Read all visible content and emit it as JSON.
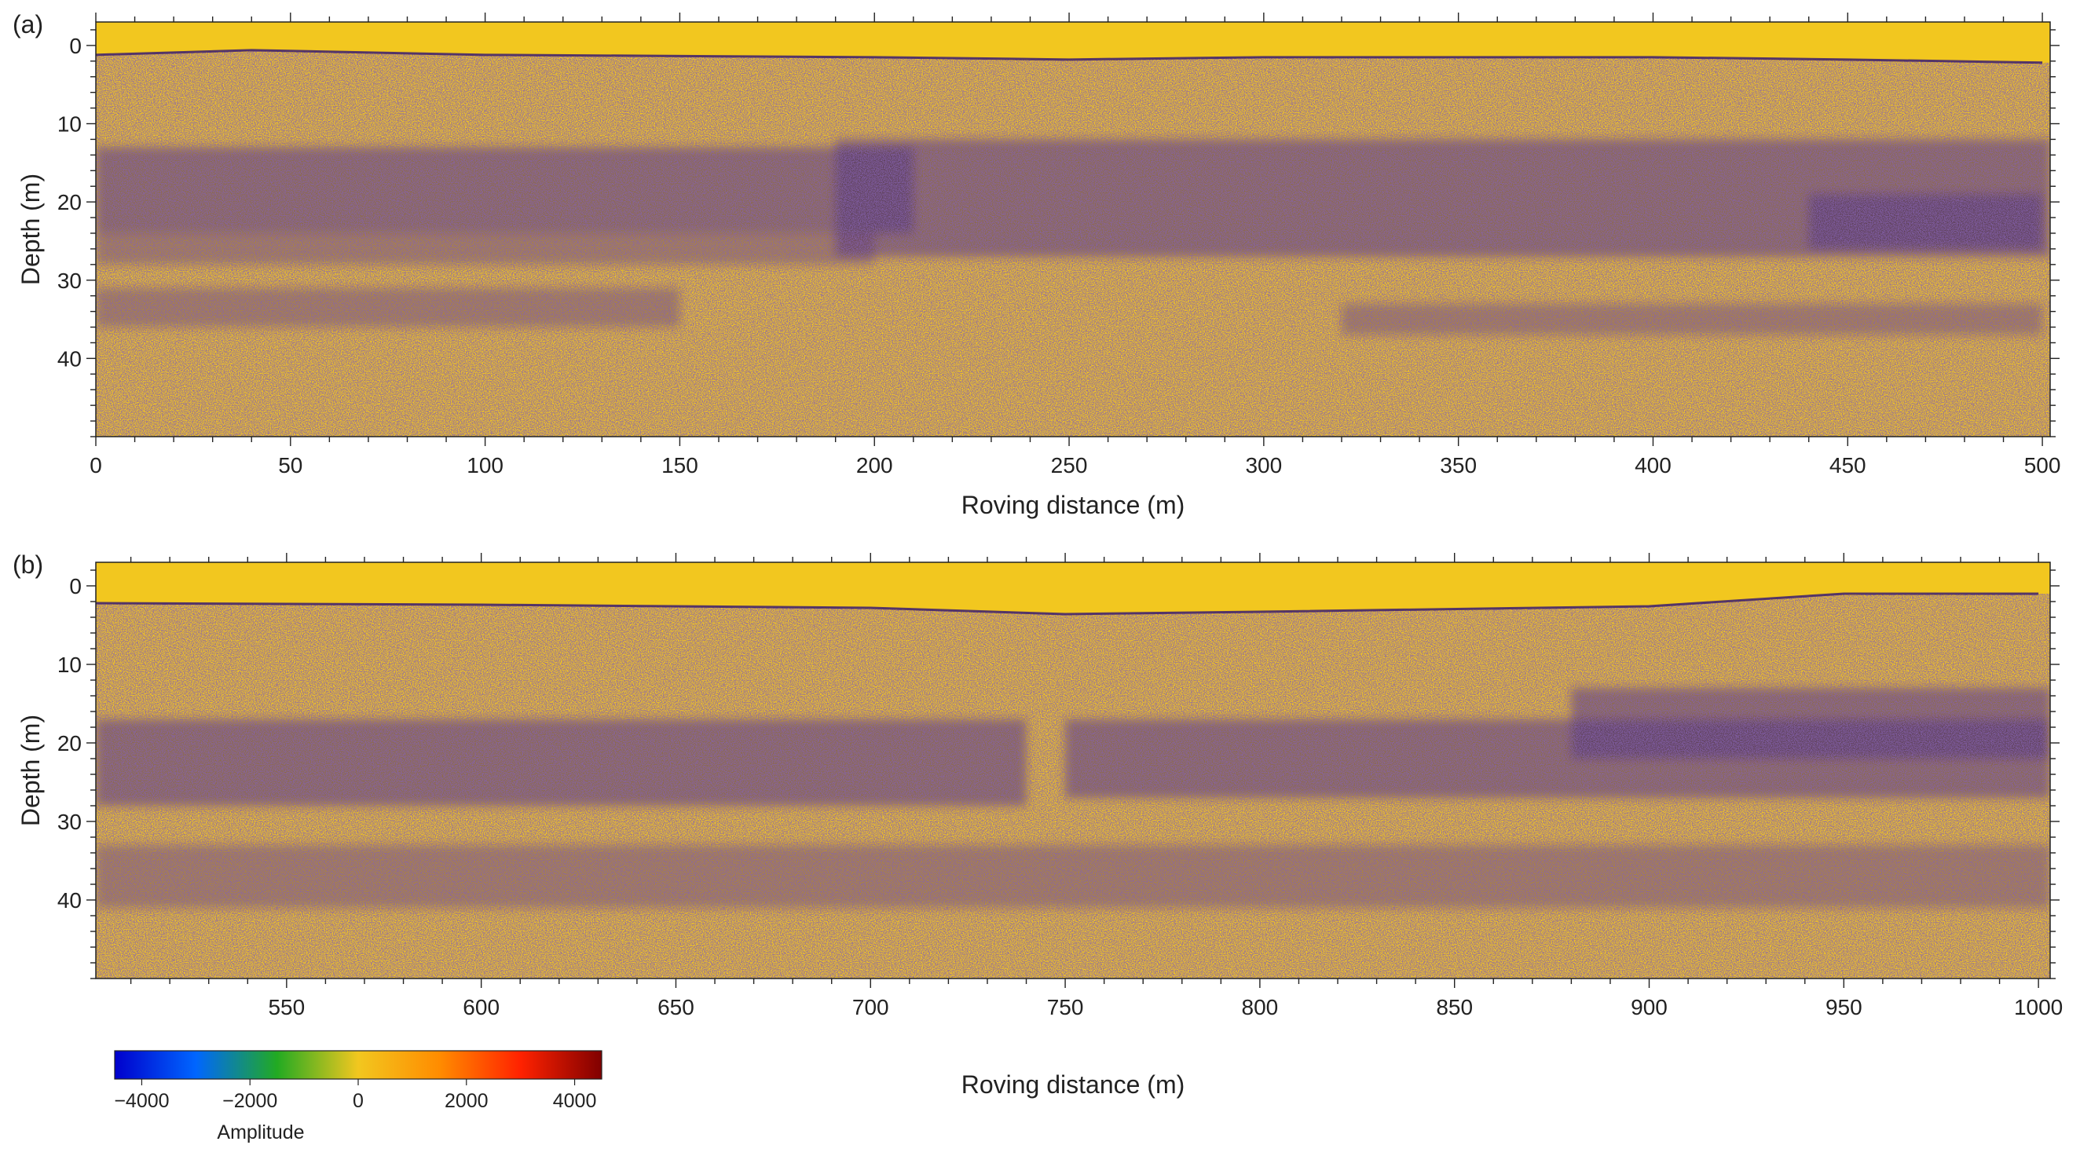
{
  "panels": [
    {
      "label": "(a)",
      "xlabel": "Roving distance (m)",
      "ylabel": "Depth (m)"
    },
    {
      "label": "(b)",
      "xlabel": "Roving distance (m)",
      "ylabel": "Depth (m)"
    }
  ],
  "colorbar": {
    "label": "Amplitude",
    "range": [
      -4500,
      4500
    ],
    "ticks": [
      -4000,
      -2000,
      0,
      2000,
      4000
    ],
    "tick_labels": [
      "−4000",
      "−2000",
      "0",
      "2000",
      "4000"
    ],
    "colormap": [
      "#0000cc",
      "#0066ff",
      "#22aa22",
      "#f2c71f",
      "#ff8c00",
      "#ff2200",
      "#800000"
    ]
  },
  "colors": {
    "background_amplitude": "#f2c71f",
    "reflector_amplitude": "#3c1f6e"
  },
  "chart_data": [
    {
      "type": "heatmap",
      "title": "",
      "xlabel": "Roving distance (m)",
      "ylabel": "Depth (m)",
      "xlim": [
        0,
        502
      ],
      "ylim": [
        50,
        -3
      ],
      "y_inverted": true,
      "xticks": [
        0,
        50,
        100,
        150,
        200,
        250,
        300,
        350,
        400,
        450,
        500
      ],
      "yticks": [
        0,
        10,
        20,
        30,
        40
      ],
      "surface_depth": {
        "x": [
          0,
          40,
          100,
          200,
          250,
          300,
          400,
          450,
          500
        ],
        "depth": [
          1.2,
          0.6,
          1.2,
          1.5,
          1.8,
          1.5,
          1.5,
          1.8,
          2.2
        ]
      },
      "reflector_bands": [
        {
          "x": [
            0,
            210
          ],
          "depth": [
            13,
            24
          ],
          "amplitude": "high"
        },
        {
          "x": [
            190,
            502
          ],
          "depth": [
            12,
            27
          ],
          "amplitude": "high"
        },
        {
          "x": [
            0,
            200
          ],
          "depth": [
            24,
            28
          ],
          "amplitude": "medium"
        },
        {
          "x": [
            0,
            150
          ],
          "depth": [
            31,
            36
          ],
          "amplitude": "medium"
        },
        {
          "x": [
            320,
            500
          ],
          "depth": [
            33,
            37
          ],
          "amplitude": "medium"
        },
        {
          "x": [
            440,
            500
          ],
          "depth": [
            19,
            26
          ],
          "amplitude": "high"
        }
      ]
    },
    {
      "type": "heatmap",
      "title": "",
      "xlabel": "Roving distance (m)",
      "ylabel": "Depth (m)",
      "xlim": [
        501,
        1003
      ],
      "ylim": [
        50,
        -3
      ],
      "y_inverted": true,
      "xticks": [
        550,
        600,
        650,
        700,
        750,
        800,
        850,
        900,
        950,
        1000
      ],
      "yticks": [
        0,
        10,
        20,
        30,
        40
      ],
      "surface_depth": {
        "x": [
          501,
          600,
          700,
          750,
          800,
          900,
          950,
          1000
        ],
        "depth": [
          2.2,
          2.4,
          2.8,
          3.6,
          3.3,
          2.6,
          1.0,
          1.0
        ]
      },
      "reflector_bands": [
        {
          "x": [
            501,
            740
          ],
          "depth": [
            17,
            28
          ],
          "amplitude": "high"
        },
        {
          "x": [
            750,
            1003
          ],
          "depth": [
            17,
            27
          ],
          "amplitude": "high"
        },
        {
          "x": [
            501,
            1003
          ],
          "depth": [
            33,
            41
          ],
          "amplitude": "medium"
        },
        {
          "x": [
            880,
            1003
          ],
          "depth": [
            13,
            22
          ],
          "amplitude": "high"
        }
      ]
    }
  ]
}
